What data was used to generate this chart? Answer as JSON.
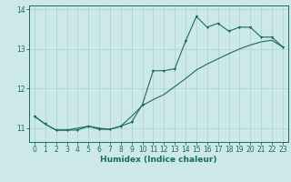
{
  "xlabel": "Humidex (Indice chaleur)",
  "background_color": "#cce8e8",
  "line_color": "#1a6b60",
  "grid_color": "#afd4d4",
  "xlim": [
    -0.5,
    23.5
  ],
  "ylim": [
    10.65,
    14.1
  ],
  "yticks": [
    11,
    12,
    13,
    14
  ],
  "xticks": [
    0,
    1,
    2,
    3,
    4,
    5,
    6,
    7,
    8,
    9,
    10,
    11,
    12,
    13,
    14,
    15,
    16,
    17,
    18,
    19,
    20,
    21,
    22,
    23
  ],
  "series1_x": [
    0,
    1,
    2,
    3,
    4,
    5,
    6,
    7,
    8,
    9,
    10,
    11,
    12,
    13,
    14,
    15,
    16,
    17,
    18,
    19,
    20,
    21,
    22,
    23
  ],
  "series1_y": [
    11.3,
    11.1,
    10.95,
    10.95,
    10.95,
    11.05,
    10.97,
    10.97,
    11.05,
    11.15,
    11.6,
    12.45,
    12.45,
    12.5,
    13.2,
    13.82,
    13.55,
    13.65,
    13.45,
    13.55,
    13.55,
    13.3,
    13.3,
    13.05
  ],
  "series2_x": [
    0,
    1,
    2,
    3,
    4,
    5,
    6,
    7,
    8,
    9,
    10,
    11,
    12,
    13,
    14,
    15,
    16,
    17,
    18,
    19,
    20,
    21,
    22,
    23
  ],
  "series2_y": [
    11.3,
    11.1,
    10.95,
    10.95,
    11.0,
    11.05,
    11.0,
    10.97,
    11.05,
    11.3,
    11.57,
    11.72,
    11.85,
    12.05,
    12.25,
    12.47,
    12.62,
    12.75,
    12.88,
    13.0,
    13.1,
    13.18,
    13.22,
    13.05
  ]
}
